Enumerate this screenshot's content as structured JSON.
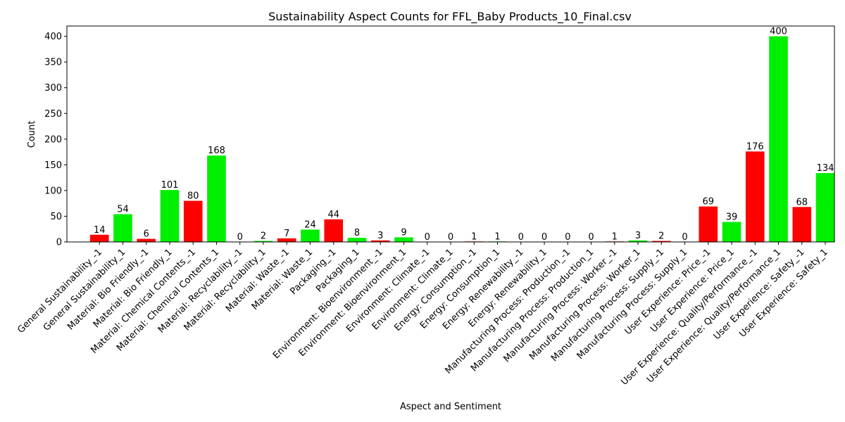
{
  "chart_data": {
    "type": "bar",
    "title": "Sustainability Aspect Counts for FFL_Baby Products_10_Final.csv",
    "xlabel": "Aspect and Sentiment",
    "ylabel": "Count",
    "ylim": [
      0,
      420
    ],
    "yticks": [
      0,
      50,
      100,
      150,
      200,
      250,
      300,
      350,
      400
    ],
    "grid": false,
    "negative_color": "#ff0000",
    "positive_color": "#00ee00",
    "categories": [
      "General Sustainability_-1",
      "General Sustainability_1",
      "Material: Bio Friendly_-1",
      "Material: Bio Friendly_1",
      "Material: Chemical Contents_-1",
      "Material: Chemical Contents_1",
      "Material: Recyclability_-1",
      "Material: Recyclability_1",
      "Material: Waste_-1",
      "Material: Waste_1",
      "Packaging_-1",
      "Packaging_1",
      "Environment: Bioenvironment_-1",
      "Environment: Bioenvironment_1",
      "Environment: Climate_-1",
      "Environment: Climate_1",
      "Energy: Consumption_-1",
      "Energy: Consumption_1",
      "Energy: Renewability_-1",
      "Energy: Renewability_1",
      "Manufacturing Process: Production_-1",
      "Manufacturing Process: Production_1",
      "Manufacturing Process: Worker_-1",
      "Manufacturing Process: Worker_1",
      "Manufacturing Process: Supply_-1",
      "Manufacturing Process: Supply_1",
      "User Experience: Price_-1",
      "User Experience: Price_1",
      "User Experience: Quality/Performance_-1",
      "User Experience: Quality/Performance_1",
      "User Experience: Safety_-1",
      "User Experience: Safety_1"
    ],
    "values": [
      14,
      54,
      6,
      101,
      80,
      168,
      0,
      2,
      7,
      24,
      44,
      8,
      3,
      9,
      0,
      0,
      1,
      1,
      0,
      0,
      0,
      0,
      1,
      3,
      2,
      0,
      69,
      39,
      176,
      400,
      68,
      134
    ]
  }
}
